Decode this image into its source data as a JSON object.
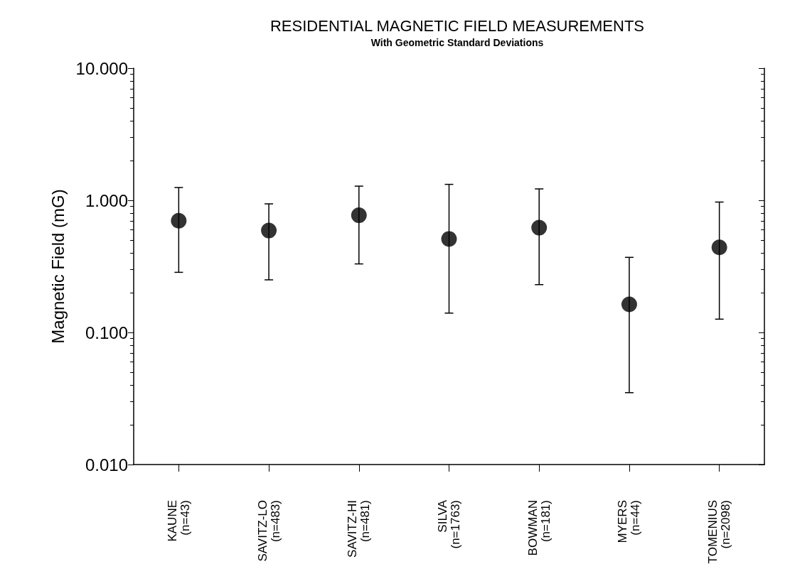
{
  "chart_data": {
    "type": "scatter",
    "title": "RESIDENTIAL MAGNETIC FIELD MEASUREMENTS",
    "subtitle": "With Geometric Standard Deviations",
    "ylabel": "Magnetic Field (mG)",
    "categories": [
      "KAUNE\n(n=43)",
      "SAVITZ-LO\n(n=483)",
      "SAVITZ-HI\n(n=481)",
      "SILVA\n(n=1763)",
      "BOWMAN\n(n=181)",
      "MYERS\n(n=44)",
      "TOMENIUS\n(n=2098)"
    ],
    "series": [
      {
        "color": "#000000",
        "values": [
          0.7,
          0.59,
          0.77,
          0.51,
          0.62,
          0.163,
          0.44
        ],
        "errors": [
          [
            0.285,
            1.25
          ],
          [
            0.25,
            0.94
          ],
          [
            0.33,
            1.28
          ],
          [
            0.14,
            1.32
          ],
          [
            0.23,
            1.22
          ],
          [
            0.035,
            0.37
          ],
          [
            0.126,
            0.97
          ]
        ]
      }
    ],
    "log": "y",
    "ylim": [
      0.01,
      10
    ],
    "yticks": [
      {
        "value": 0.01,
        "label": "0.010"
      },
      {
        "value": 0.1,
        "label": "0.100"
      },
      {
        "value": 1,
        "label": "1.000"
      },
      {
        "value": 10,
        "label": "10.000"
      }
    ],
    "grid": false,
    "marker": "circle"
  }
}
